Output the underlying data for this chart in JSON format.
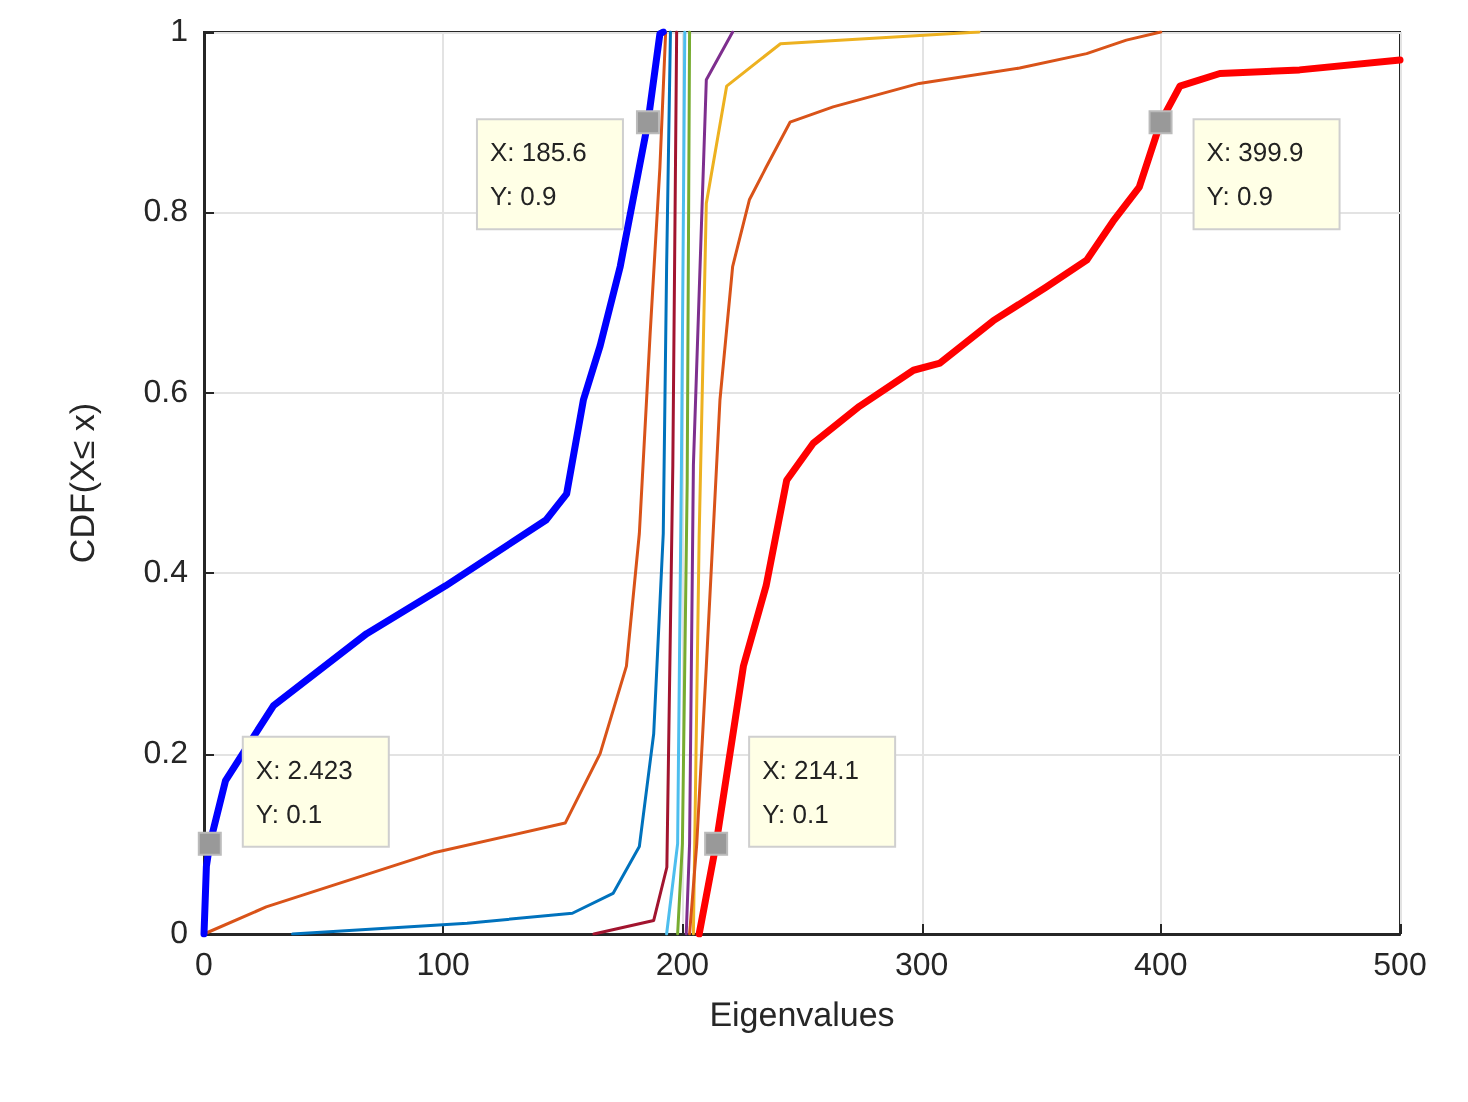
{
  "chart_data": {
    "type": "line",
    "xlabel": "Eigenvalues",
    "ylabel": "CDF(X≤ x)",
    "xlim": [
      0,
      500
    ],
    "ylim": [
      0,
      1
    ],
    "xticks": [
      0,
      100,
      200,
      300,
      400,
      500
    ],
    "yticks": [
      0,
      0.2,
      0.4,
      0.6,
      0.8,
      1
    ],
    "grid": true,
    "marker": "none",
    "line_style": "solid",
    "series": [
      {
        "color": "#0000ff",
        "x": [
          0,
          1,
          2.423,
          9,
          29,
          68,
          101,
          143,
          151.6,
          158.6,
          165.6,
          174,
          185.6,
          190.6,
          192
        ],
        "values": [
          0,
          0.075,
          0.1,
          0.17,
          0.253,
          0.333,
          0.386,
          0.459,
          0.488,
          0.592,
          0.652,
          0.74,
          0.9,
          0.998,
          1
        ]
      },
      {
        "color": "#d95319",
        "x": [
          0,
          26,
          96,
          151,
          165.6,
          176.6,
          182,
          186.5,
          190.6,
          193
        ],
        "values": [
          0,
          0.03,
          0.09,
          0.123,
          0.2,
          0.297,
          0.444,
          0.665,
          0.85,
          1
        ]
      },
      {
        "color": "#0072bd",
        "x": [
          37,
          110,
          154,
          171,
          182,
          188,
          192,
          193.4,
          195
        ],
        "values": [
          0,
          0.012,
          0.023,
          0.045,
          0.097,
          0.222,
          0.444,
          0.74,
          1
        ]
      },
      {
        "color": "#a2142f",
        "x": [
          163,
          188,
          193.5,
          196,
          197.6
        ],
        "values": [
          0,
          0.015,
          0.074,
          0.52,
          1
        ]
      },
      {
        "color": "#4dbeee",
        "x": [
          193.4,
          198,
          199.6,
          201
        ],
        "values": [
          0,
          0.1,
          0.52,
          1
        ]
      },
      {
        "color": "#77ac30",
        "x": [
          198,
          200,
          202,
          203
        ],
        "values": [
          0,
          0.1,
          0.5,
          1
        ]
      },
      {
        "color": "#7e2f8e",
        "x": [
          201.6,
          203,
          204.6,
          210,
          221
        ],
        "values": [
          0,
          0.1,
          0.52,
          0.947,
          1
        ]
      },
      {
        "color": "#edb120",
        "x": [
          204.6,
          207,
          210,
          218.5,
          241,
          324
        ],
        "values": [
          0,
          0.44,
          0.81,
          0.94,
          0.987,
          1
        ]
      },
      {
        "color": "#d95319",
        "x": [
          203,
          206,
          210,
          215.7,
          221,
          228,
          235,
          245,
          263,
          299,
          341,
          369,
          385.6,
          400
        ],
        "values": [
          0,
          0.1,
          0.297,
          0.592,
          0.74,
          0.814,
          0.85,
          0.9,
          0.917,
          0.943,
          0.96,
          0.976,
          0.991,
          1
        ]
      },
      {
        "color": "#ff0000",
        "x": [
          207,
          214.1,
          225.5,
          235,
          243.6,
          254.7,
          274,
          296.6,
          307.7,
          330,
          352,
          369,
          380,
          391,
          399.9,
          408,
          424.7,
          458,
          500
        ],
        "values": [
          0,
          0.1,
          0.297,
          0.386,
          0.503,
          0.544,
          0.585,
          0.625,
          0.633,
          0.68,
          0.717,
          0.747,
          0.79,
          0.828,
          0.9,
          0.94,
          0.954,
          0.958,
          0.969
        ]
      }
    ],
    "annotations": [
      {
        "text": "X: 2.423\nY: 0.1",
        "x": 2.423,
        "y": 0.1
      },
      {
        "text": "X: 185.6\nY: 0.9",
        "x": 185.6,
        "y": 0.9
      },
      {
        "text": "X: 214.1\nY: 0.1",
        "x": 214.1,
        "y": 0.1
      },
      {
        "text": "X: 399.9\nY: 0.9",
        "x": 399.9,
        "y": 0.9
      }
    ]
  }
}
